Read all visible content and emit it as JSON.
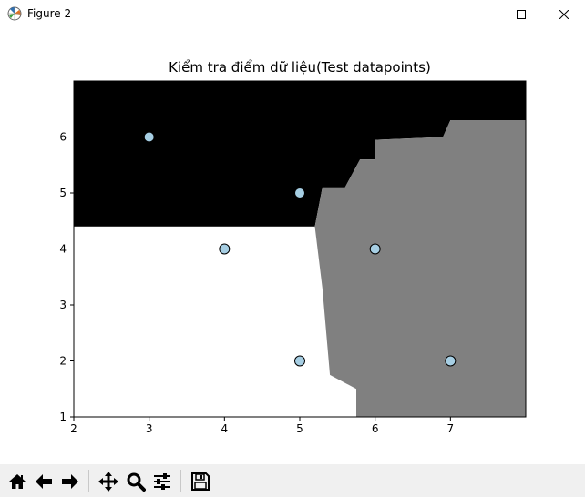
{
  "window": {
    "title": "Figure 2",
    "controls": [
      "minimize",
      "maximize",
      "close"
    ]
  },
  "toolbar": {
    "buttons": [
      {
        "name": "home",
        "icon": "home-icon"
      },
      {
        "name": "back",
        "icon": "arrow-left-icon"
      },
      {
        "name": "forward",
        "icon": "arrow-right-icon"
      },
      {
        "name": "pan",
        "icon": "move-icon"
      },
      {
        "name": "zoom",
        "icon": "zoom-icon"
      },
      {
        "name": "subplots",
        "icon": "sliders-icon"
      },
      {
        "name": "save",
        "icon": "save-icon"
      }
    ]
  },
  "chart_data": {
    "type": "scatter",
    "title": "Kiểm tra điểm dữ liệu(Test datapoints)",
    "xlabel": "",
    "ylabel": "",
    "xlim": [
      2,
      8
    ],
    "ylim": [
      1,
      7
    ],
    "xticks": [
      2,
      3,
      4,
      5,
      6,
      7
    ],
    "yticks": [
      1,
      2,
      3,
      4,
      5,
      6
    ],
    "grid": false,
    "points": [
      {
        "x": 3,
        "y": 6
      },
      {
        "x": 5,
        "y": 5
      },
      {
        "x": 4,
        "y": 4
      },
      {
        "x": 6,
        "y": 4
      },
      {
        "x": 5,
        "y": 2
      },
      {
        "x": 7,
        "y": 2
      }
    ],
    "point_color": "#a6cee3",
    "point_edge_color": "#000000",
    "regions": [
      {
        "class": 0,
        "color": "#000000",
        "polygon": [
          [
            2,
            7
          ],
          [
            8,
            7
          ],
          [
            8,
            6.3
          ],
          [
            7.0,
            6.3
          ],
          [
            6.9,
            6.0
          ],
          [
            6.0,
            5.95
          ],
          [
            6.0,
            5.6
          ],
          [
            5.8,
            5.6
          ],
          [
            5.6,
            5.1
          ],
          [
            5.3,
            5.1
          ],
          [
            5.2,
            4.4
          ],
          [
            2,
            4.4
          ]
        ]
      },
      {
        "class": 1,
        "color": "#ffffff",
        "polygon": [
          [
            2,
            4.4
          ],
          [
            5.2,
            4.4
          ],
          [
            5.3,
            3.3
          ],
          [
            5.4,
            1.75
          ],
          [
            5.75,
            1.5
          ],
          [
            5.75,
            1
          ],
          [
            2,
            1
          ]
        ]
      },
      {
        "class": 2,
        "color": "#808080",
        "polygon": [
          [
            5.2,
            4.4
          ],
          [
            5.3,
            5.1
          ],
          [
            5.6,
            5.1
          ],
          [
            5.8,
            5.6
          ],
          [
            6.0,
            5.6
          ],
          [
            6.0,
            5.95
          ],
          [
            6.9,
            6.0
          ],
          [
            7.0,
            6.3
          ],
          [
            8,
            6.3
          ],
          [
            8,
            1
          ],
          [
            5.75,
            1
          ],
          [
            5.75,
            1.5
          ],
          [
            5.4,
            1.75
          ],
          [
            5.3,
            3.3
          ]
        ]
      }
    ]
  }
}
